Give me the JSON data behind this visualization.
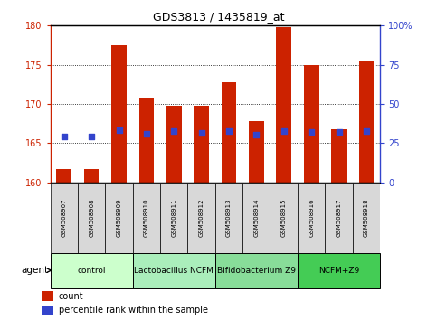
{
  "title": "GDS3813 / 1435819_at",
  "samples": [
    "GSM508907",
    "GSM508908",
    "GSM508909",
    "GSM508910",
    "GSM508911",
    "GSM508912",
    "GSM508913",
    "GSM508914",
    "GSM508915",
    "GSM508916",
    "GSM508917",
    "GSM508918"
  ],
  "bar_heights": [
    161.7,
    161.7,
    177.5,
    170.8,
    169.8,
    169.8,
    172.8,
    167.8,
    179.8,
    175.0,
    166.8,
    175.5
  ],
  "blue_y": [
    165.9,
    165.9,
    166.7,
    166.2,
    166.5,
    166.3,
    166.5,
    166.1,
    166.5,
    166.4,
    166.4,
    166.5
  ],
  "bar_bottom": 160.0,
  "ylim_left": [
    160,
    180
  ],
  "ylim_right": [
    0,
    100
  ],
  "yticks_left": [
    160,
    165,
    170,
    175,
    180
  ],
  "yticks_right": [
    0,
    25,
    50,
    75,
    100
  ],
  "ytick_labels_right": [
    "0",
    "25",
    "50",
    "75",
    "100%"
  ],
  "bar_color": "#cc2200",
  "blue_color": "#3344cc",
  "agent_groups": [
    {
      "label": "control",
      "start": 0,
      "end": 2,
      "color": "#ccffcc"
    },
    {
      "label": "Lactobacillus NCFM",
      "start": 3,
      "end": 5,
      "color": "#aaeebb"
    },
    {
      "label": "Bifidobacterium Z9",
      "start": 6,
      "end": 8,
      "color": "#88dd99"
    },
    {
      "label": "NCFM+Z9",
      "start": 9,
      "end": 11,
      "color": "#44cc55"
    }
  ],
  "legend_count_color": "#cc2200",
  "legend_pct_color": "#3344cc",
  "tick_label_color_left": "#cc2200",
  "tick_label_color_right": "#3344cc",
  "bar_width": 0.55,
  "blue_marker_size": 5
}
